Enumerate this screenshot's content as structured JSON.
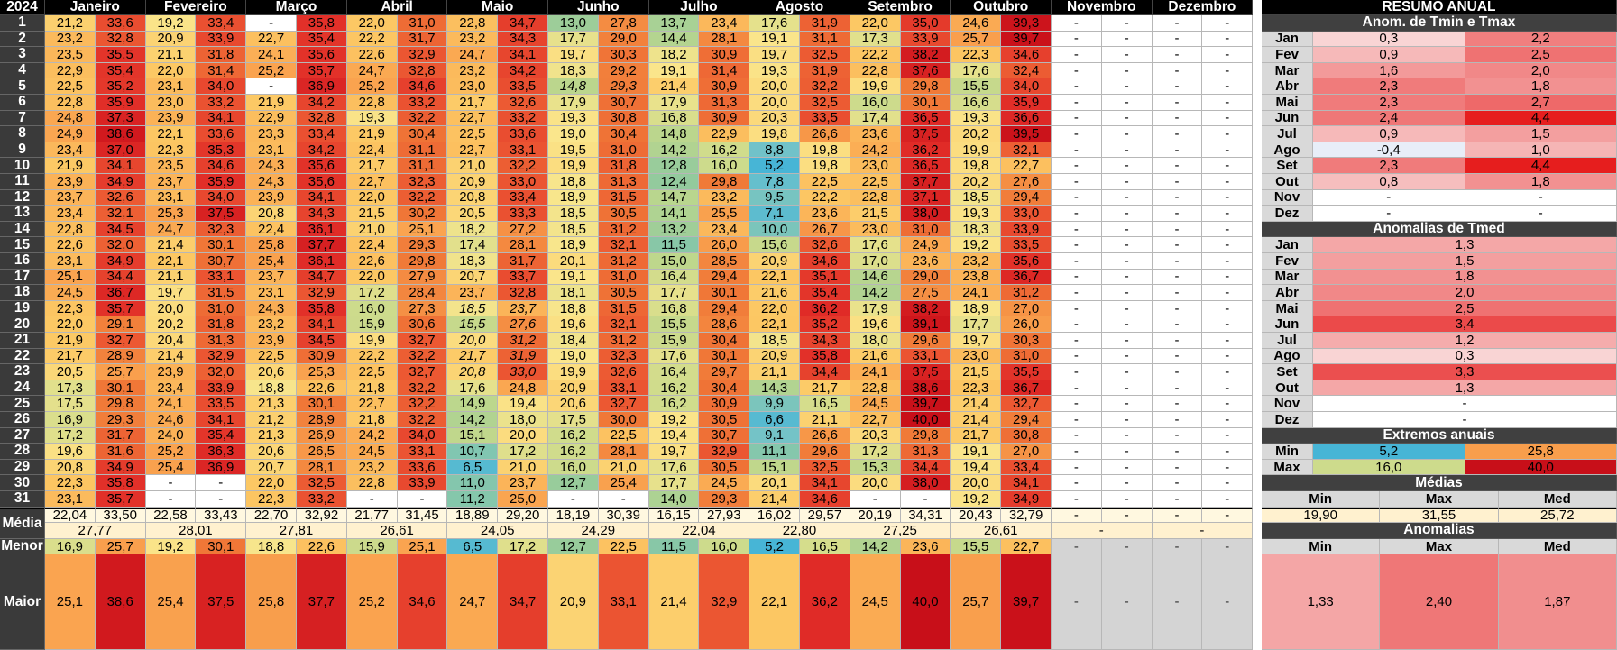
{
  "year": "2024",
  "months": [
    "Janeiro",
    "Fevereiro",
    "Março",
    "Abril",
    "Maio",
    "Junho",
    "Julho",
    "Agosto",
    "Setembro",
    "Outubro",
    "Novembro",
    "Dezembro"
  ],
  "summary_title": "RESUMO ANUAL",
  "daily_min": [
    [
      "21,2",
      "23,2",
      "23,5",
      "22,9",
      "22,5",
      "22,8",
      "24,8",
      "24,9",
      "23,4",
      "21,9",
      "23,9",
      "23,7",
      "23,4",
      "22,8",
      "22,6",
      "23,1",
      "25,1",
      "24,5",
      "22,3",
      "22,0",
      "21,9",
      "21,7",
      "20,5",
      "17,3",
      "17,5",
      "16,9",
      "17,2",
      "19,6",
      "20,8",
      "22,3",
      "23,1"
    ],
    [
      "19,2",
      "20,9",
      "21,1",
      "22,0",
      "23,1",
      "23,0",
      "23,9",
      "22,1",
      "22,3",
      "23,5",
      "23,7",
      "23,1",
      "25,3",
      "24,7",
      "21,4",
      "22,1",
      "21,1",
      "19,7",
      "20,0",
      "20,2",
      "20,4",
      "21,4",
      "23,9",
      "23,4",
      "24,1",
      "24,6",
      "24,0",
      "25,2",
      "25,4",
      "-",
      "-"
    ],
    [
      "-",
      "22,7",
      "24,1",
      "25,2",
      "-",
      "21,9",
      "22,9",
      "23,3",
      "23,1",
      "24,3",
      "24,3",
      "23,9",
      "20,8",
      "22,4",
      "25,8",
      "25,4",
      "23,7",
      "23,1",
      "24,3",
      "23,2",
      "23,9",
      "22,5",
      "20,6",
      "18,8",
      "21,3",
      "21,2",
      "21,3",
      "20,6",
      "20,7",
      "22,0",
      "22,3"
    ],
    [
      "22,0",
      "22,2",
      "22,6",
      "24,7",
      "25,2",
      "22,8",
      "19,3",
      "21,9",
      "22,4",
      "21,7",
      "22,7",
      "22,0",
      "21,5",
      "21,0",
      "22,4",
      "22,6",
      "22,0",
      "17,2",
      "16,0",
      "15,9",
      "19,9",
      "22,2",
      "22,5",
      "21,8",
      "22,7",
      "21,8",
      "24,2",
      "24,5",
      "23,2",
      "22,8",
      "-"
    ],
    [
      "22,8",
      "23,2",
      "24,7",
      "23,2",
      "23,0",
      "21,7",
      "22,7",
      "22,5",
      "22,7",
      "21,0",
      "20,9",
      "20,8",
      "20,5",
      "18,2",
      "17,4",
      "18,3",
      "20,7",
      "23,7",
      "18,5",
      "15,5",
      "20,0",
      "21,7",
      "20,8",
      "17,6",
      "14,9",
      "14,2",
      "15,1",
      "10,7",
      "6,5",
      "11,0",
      "11,2"
    ],
    [
      "13,0",
      "17,7",
      "19,7",
      "18,3",
      "14,8",
      "17,9",
      "19,3",
      "19,0",
      "19,5",
      "19,9",
      "18,8",
      "18,9",
      "18,5",
      "18,5",
      "18,9",
      "20,1",
      "19,1",
      "18,1",
      "18,8",
      "19,6",
      "18,4",
      "19,0",
      "19,9",
      "20,9",
      "20,6",
      "17,5",
      "16,2",
      "16,2",
      "16,0",
      "12,7",
      "-"
    ],
    [
      "13,7",
      "14,4",
      "18,2",
      "19,1",
      "21,4",
      "17,9",
      "16,8",
      "14,8",
      "14,2",
      "12,8",
      "12,4",
      "14,7",
      "14,1",
      "13,2",
      "11,5",
      "15,0",
      "16,4",
      "17,7",
      "16,8",
      "15,5",
      "15,9",
      "17,6",
      "16,4",
      "16,2",
      "16,2",
      "19,2",
      "19,4",
      "19,7",
      "17,6",
      "17,7",
      "14,0"
    ],
    [
      "17,6",
      "19,1",
      "19,7",
      "19,3",
      "20,0",
      "20,0",
      "20,3",
      "19,8",
      "8,8",
      "5,2",
      "7,8",
      "9,5",
      "7,1",
      "10,0",
      "15,6",
      "20,9",
      "22,1",
      "21,6",
      "22,0",
      "22,1",
      "18,5",
      "20,9",
      "21,1",
      "14,3",
      "9,9",
      "6,6",
      "9,1",
      "11,1",
      "15,1",
      "20,1",
      "21,4"
    ],
    [
      "22,0",
      "17,3",
      "22,2",
      "22,8",
      "19,9",
      "16,0",
      "17,4",
      "23,6",
      "24,2",
      "23,0",
      "22,5",
      "22,8",
      "21,5",
      "23,0",
      "17,6",
      "17,0",
      "14,6",
      "14,2",
      "17,9",
      "19,6",
      "18,0",
      "21,6",
      "24,1",
      "22,8",
      "24,5",
      "22,7",
      "20,3",
      "17,2",
      "15,3",
      "20,0",
      "-"
    ],
    [
      "24,6",
      "25,7",
      "22,3",
      "17,6",
      "15,5",
      "16,6",
      "19,3",
      "20,2",
      "19,9",
      "19,8",
      "20,2",
      "18,5",
      "19,3",
      "18,3",
      "19,2",
      "23,2",
      "23,8",
      "24,1",
      "18,9",
      "17,7",
      "19,7",
      "23,0",
      "21,5",
      "22,3",
      "21,4",
      "21,4",
      "21,7",
      "19,1",
      "19,4",
      "20,0",
      "19,2"
    ],
    [
      "-",
      "-",
      "-",
      "-",
      "-",
      "-",
      "-",
      "-",
      "-",
      "-",
      "-",
      "-",
      "-",
      "-",
      "-",
      "-",
      "-",
      "-",
      "-",
      "-",
      "-",
      "-",
      "-",
      "-",
      "-",
      "-",
      "-",
      "-",
      "-",
      "-",
      "-"
    ],
    [
      "-",
      "-",
      "-",
      "-",
      "-",
      "-",
      "-",
      "-",
      "-",
      "-",
      "-",
      "-",
      "-",
      "-",
      "-",
      "-",
      "-",
      "-",
      "-",
      "-",
      "-",
      "-",
      "-",
      "-",
      "-",
      "-",
      "-",
      "-",
      "-",
      "-",
      "-"
    ]
  ],
  "daily_max": [
    [
      "33,6",
      "32,8",
      "35,5",
      "35,4",
      "35,2",
      "35,9",
      "37,3",
      "38,6",
      "37,0",
      "34,1",
      "34,9",
      "32,6",
      "32,1",
      "34,5",
      "32,0",
      "34,9",
      "34,4",
      "36,7",
      "35,7",
      "29,1",
      "32,7",
      "28,9",
      "25,7",
      "30,1",
      "29,8",
      "29,3",
      "31,7",
      "31,6",
      "34,9",
      "35,8",
      "35,7"
    ],
    [
      "33,4",
      "33,9",
      "31,8",
      "31,4",
      "34,0",
      "33,2",
      "34,1",
      "33,6",
      "35,3",
      "34,6",
      "35,9",
      "34,0",
      "37,5",
      "32,3",
      "30,1",
      "30,7",
      "33,1",
      "31,5",
      "31,0",
      "31,8",
      "31,3",
      "32,9",
      "32,0",
      "33,9",
      "33,5",
      "34,1",
      "35,4",
      "36,3",
      "36,9",
      "-",
      "-"
    ],
    [
      "35,8",
      "35,4",
      "35,6",
      "35,7",
      "36,9",
      "34,2",
      "32,8",
      "33,4",
      "34,2",
      "35,6",
      "35,6",
      "34,1",
      "34,3",
      "36,1",
      "37,7",
      "36,1",
      "34,7",
      "32,9",
      "35,8",
      "34,1",
      "34,5",
      "30,9",
      "25,3",
      "22,6",
      "30,1",
      "28,9",
      "26,9",
      "26,5",
      "28,1",
      "32,5",
      "33,2"
    ],
    [
      "31,0",
      "31,7",
      "32,9",
      "32,8",
      "34,6",
      "33,2",
      "32,2",
      "30,4",
      "31,1",
      "31,1",
      "32,3",
      "32,2",
      "30,2",
      "25,1",
      "29,3",
      "29,8",
      "27,9",
      "28,4",
      "27,3",
      "30,6",
      "32,7",
      "32,2",
      "32,7",
      "32,2",
      "32,2",
      "32,2",
      "34,0",
      "33,1",
      "33,6",
      "33,9",
      "-"
    ],
    [
      "34,7",
      "34,3",
      "34,1",
      "34,2",
      "33,5",
      "32,6",
      "33,2",
      "33,6",
      "33,1",
      "32,2",
      "33,0",
      "33,4",
      "33,3",
      "27,2",
      "28,1",
      "31,7",
      "33,7",
      "32,8",
      "23,7",
      "27,6",
      "31,2",
      "31,9",
      "33,0",
      "24,8",
      "19,4",
      "18,0",
      "20,0",
      "17,2",
      "21,0",
      "23,7",
      "25,0"
    ],
    [
      "27,8",
      "29,0",
      "30,3",
      "29,2",
      "29,3",
      "30,7",
      "30,8",
      "30,4",
      "31,0",
      "31,8",
      "31,3",
      "31,5",
      "30,5",
      "31,2",
      "32,1",
      "31,2",
      "31,0",
      "30,5",
      "31,5",
      "32,1",
      "31,2",
      "32,3",
      "32,6",
      "33,1",
      "32,7",
      "30,0",
      "22,5",
      "28,1",
      "21,0",
      "25,4",
      "-"
    ],
    [
      "23,4",
      "28,1",
      "30,9",
      "31,4",
      "30,9",
      "31,3",
      "30,9",
      "22,9",
      "16,2",
      "16,0",
      "29,8",
      "23,2",
      "25,5",
      "23,4",
      "26,0",
      "28,5",
      "29,4",
      "30,1",
      "29,4",
      "28,6",
      "30,4",
      "30,1",
      "29,7",
      "30,4",
      "30,9",
      "30,5",
      "30,7",
      "32,9",
      "30,5",
      "24,5",
      "29,3"
    ],
    [
      "31,9",
      "31,1",
      "32,5",
      "31,9",
      "32,2",
      "32,5",
      "33,5",
      "26,6",
      "19,8",
      "19,8",
      "22,5",
      "22,2",
      "23,6",
      "26,7",
      "32,6",
      "34,6",
      "35,1",
      "35,4",
      "36,2",
      "35,2",
      "34,3",
      "35,8",
      "34,4",
      "21,7",
      "16,5",
      "21,1",
      "26,6",
      "29,6",
      "32,5",
      "34,1",
      "34,6"
    ],
    [
      "35,0",
      "33,9",
      "38,2",
      "37,6",
      "29,8",
      "30,1",
      "36,5",
      "37,5",
      "36,2",
      "36,5",
      "37,7",
      "37,1",
      "38,0",
      "31,0",
      "24,9",
      "23,6",
      "29,0",
      "27,5",
      "38,2",
      "39,1",
      "29,6",
      "33,1",
      "37,5",
      "38,6",
      "39,7",
      "40,0",
      "29,8",
      "31,3",
      "34,4",
      "38,0",
      "-"
    ],
    [
      "39,3",
      "39,7",
      "34,6",
      "32,4",
      "34,0",
      "35,9",
      "36,6",
      "39,5",
      "32,1",
      "22,7",
      "27,6",
      "29,4",
      "33,0",
      "33,9",
      "33,5",
      "35,6",
      "36,7",
      "31,2",
      "27,0",
      "26,0",
      "30,3",
      "31,0",
      "35,5",
      "36,7",
      "32,7",
      "29,4",
      "30,8",
      "27,0",
      "33,4",
      "34,1",
      "34,9"
    ],
    [
      "-",
      "-",
      "-",
      "-",
      "-",
      "-",
      "-",
      "-",
      "-",
      "-",
      "-",
      "-",
      "-",
      "-",
      "-",
      "-",
      "-",
      "-",
      "-",
      "-",
      "-",
      "-",
      "-",
      "-",
      "-",
      "-",
      "-",
      "-",
      "-",
      "-",
      "-"
    ],
    [
      "-",
      "-",
      "-",
      "-",
      "-",
      "-",
      "-",
      "-",
      "-",
      "-",
      "-",
      "-",
      "-",
      "-",
      "-",
      "-",
      "-",
      "-",
      "-",
      "-",
      "-",
      "-",
      "-",
      "-",
      "-",
      "-",
      "-",
      "-",
      "-",
      "-",
      "-"
    ]
  ],
  "row_labels": {
    "media": "Média",
    "menor": "Menor",
    "maior": "Maior"
  },
  "media_min": [
    "22,04",
    "22,58",
    "22,70",
    "21,77",
    "18,89",
    "18,19",
    "16,15",
    "16,02",
    "20,19",
    "20,43",
    "-",
    "-"
  ],
  "media_max": [
    "33,50",
    "33,43",
    "32,92",
    "31,45",
    "29,20",
    "30,39",
    "27,93",
    "29,57",
    "34,31",
    "32,79",
    "-",
    "-"
  ],
  "media_med": [
    "27,77",
    "28,01",
    "27,81",
    "26,61",
    "24,05",
    "24,29",
    "22,04",
    "22,80",
    "27,25",
    "26,61",
    "-",
    "-"
  ],
  "menor_min": [
    "16,9",
    "19,2",
    "18,8",
    "15,9",
    "6,5",
    "12,7",
    "11,5",
    "5,2",
    "14,2",
    "15,5",
    "-",
    "-"
  ],
  "menor_max": [
    "25,7",
    "30,1",
    "22,6",
    "25,1",
    "17,2",
    "22,5",
    "16,0",
    "16,5",
    "23,6",
    "22,7",
    "-",
    "-"
  ],
  "maior_min": [
    "25,1",
    "25,4",
    "25,8",
    "25,2",
    "24,7",
    "20,9",
    "21,4",
    "22,1",
    "24,5",
    "25,7",
    "-",
    "-"
  ],
  "maior_max": [
    "38,6",
    "37,5",
    "37,7",
    "34,6",
    "34,7",
    "33,1",
    "32,9",
    "36,2",
    "40,0",
    "39,7",
    "-",
    "-"
  ],
  "summary": {
    "anom_title": "Anom. de Tmin e Tmax",
    "month_abbr": [
      "Jan",
      "Fev",
      "Mar",
      "Abr",
      "Mai",
      "Jun",
      "Jul",
      "Ago",
      "Set",
      "Out",
      "Nov",
      "Dez"
    ],
    "anom_min": [
      "0,3",
      "0,9",
      "1,6",
      "2,3",
      "2,3",
      "2,4",
      "0,9",
      "-0,4",
      "2,3",
      "0,8",
      "-",
      "-"
    ],
    "anom_max": [
      "2,2",
      "2,5",
      "2,0",
      "1,8",
      "2,7",
      "4,4",
      "1,5",
      "1,0",
      "4,4",
      "1,8",
      "-",
      "-"
    ],
    "tmed_title": "Anomalias de Tmed",
    "tmed": [
      "1,3",
      "1,5",
      "1,8",
      "2,0",
      "2,5",
      "3,4",
      "1,2",
      "0,3",
      "3,3",
      "1,3",
      "-",
      "-"
    ],
    "extremos_title": "Extremos anuais",
    "min_label": "Min",
    "max_label": "Max",
    "ext_min": [
      "5,2",
      "25,8"
    ],
    "ext_max": [
      "16,0",
      "40,0"
    ],
    "medias_title": "Médias",
    "col_labels": [
      "Min",
      "Max",
      "Med"
    ],
    "medias_vals": [
      "19,90",
      "31,55",
      "25,72"
    ],
    "anomalias_title": "Anomalias",
    "anomalias_vals": [
      "1,33",
      "2,40",
      "1,87"
    ]
  }
}
